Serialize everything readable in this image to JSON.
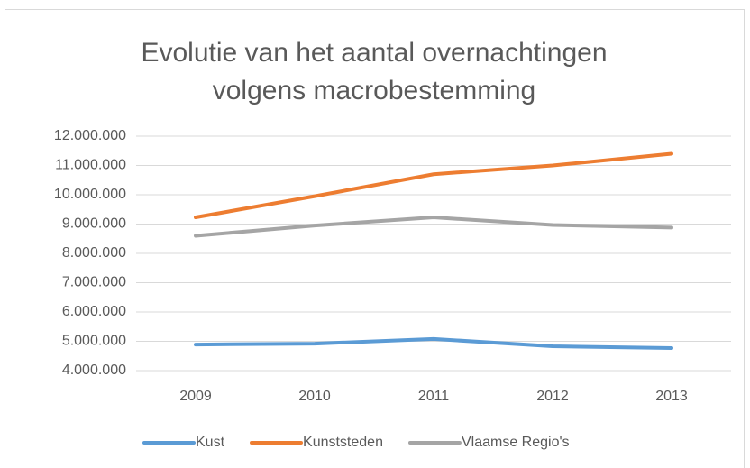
{
  "chart_data": {
    "type": "line",
    "title": "Evolutie van het aantal overnachtingen volgens macrobestemming",
    "categories": [
      "2009",
      "2010",
      "2011",
      "2012",
      "2013"
    ],
    "series": [
      {
        "name": "Kust",
        "color": "#5b9bd5",
        "values": [
          4890000,
          4920000,
          5080000,
          4830000,
          4770000
        ]
      },
      {
        "name": "Kunststeden",
        "color": "#ed7d31",
        "values": [
          9230000,
          9950000,
          10700000,
          11000000,
          11400000
        ]
      },
      {
        "name": "Vlaamse Regio's",
        "color": "#a5a5a5",
        "values": [
          8600000,
          8950000,
          9230000,
          8970000,
          8880000
        ]
      }
    ],
    "ylim": [
      4000000,
      12000000
    ],
    "yticks": [
      {
        "value": 4000000,
        "label": "4.000.000"
      },
      {
        "value": 5000000,
        "label": "5.000.000"
      },
      {
        "value": 6000000,
        "label": "6.000.000"
      },
      {
        "value": 7000000,
        "label": "7.000.000"
      },
      {
        "value": 8000000,
        "label": "8.000.000"
      },
      {
        "value": 9000000,
        "label": "9.000.000"
      },
      {
        "value": 10000000,
        "label": "10.000.000"
      },
      {
        "value": 11000000,
        "label": "11.000.000"
      },
      {
        "value": 12000000,
        "label": "12.000.000"
      }
    ],
    "grid": true,
    "legend": "bottom"
  }
}
